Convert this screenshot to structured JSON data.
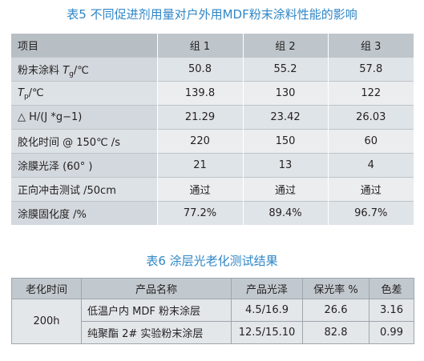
{
  "table5": {
    "caption": "表5 不同促进剂用量对户外用MDF粉末涂料性能的影响",
    "header": {
      "label": "项目",
      "cols": [
        "组 1",
        "组 2",
        "组 3"
      ]
    },
    "rows": [
      {
        "label_pre": "粉末涂料 ",
        "label_var": "T",
        "label_sub": "g",
        "label_post": "/℃",
        "values": [
          "50.8",
          "55.2",
          "57.8"
        ]
      },
      {
        "label_pre": "",
        "label_var": "T",
        "label_sub": "p",
        "label_post": "/℃",
        "values": [
          "139.8",
          "130",
          "122"
        ]
      },
      {
        "label": "△ H/(J *g−1)",
        "values": [
          "21.29",
          "23.42",
          "26.03"
        ]
      },
      {
        "label": "胶化时间 @ 150℃ /s",
        "values": [
          "220",
          "150",
          "60"
        ]
      },
      {
        "label": "涂膜光泽 (60°  )",
        "values": [
          "21",
          "13",
          "4"
        ]
      },
      {
        "label": "正向冲击测试 /50cm",
        "values": [
          "通过",
          "通过",
          "通过"
        ]
      },
      {
        "label": "涂膜固化度 /%",
        "values": [
          "77.2%",
          "89.4%",
          "96.7%"
        ]
      }
    ]
  },
  "table6": {
    "caption": "表6 涂层光老化测试结果",
    "headers": [
      "老化时间",
      "产品名称",
      "产品光泽",
      "保光率 %",
      "色差"
    ],
    "time": "200h",
    "rows": [
      {
        "product": "低温户内 MDF 粉末涂层",
        "gloss": "4.5/16.9",
        "retention": "26.6",
        "color_diff": "3.16"
      },
      {
        "product": "纯聚酯 2# 实验粉末涂层",
        "gloss": "12.5/15.10",
        "retention": "82.8",
        "color_diff": "0.99"
      }
    ]
  }
}
